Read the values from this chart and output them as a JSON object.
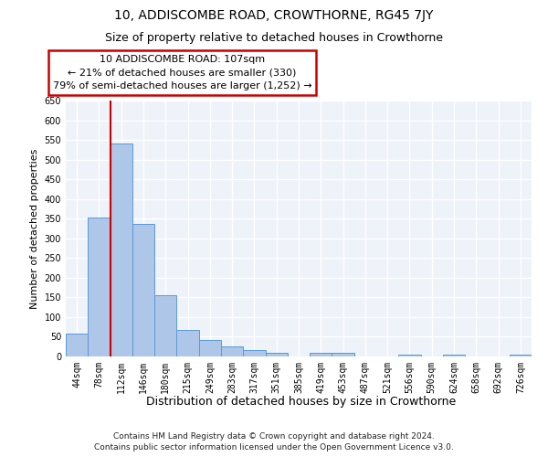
{
  "title1": "10, ADDISCOMBE ROAD, CROWTHORNE, RG45 7JY",
  "title2": "Size of property relative to detached houses in Crowthorne",
  "xlabel": "Distribution of detached houses by size in Crowthorne",
  "ylabel": "Number of detached properties",
  "categories": [
    "44sqm",
    "78sqm",
    "112sqm",
    "146sqm",
    "180sqm",
    "215sqm",
    "249sqm",
    "283sqm",
    "317sqm",
    "351sqm",
    "385sqm",
    "419sqm",
    "453sqm",
    "487sqm",
    "521sqm",
    "556sqm",
    "590sqm",
    "624sqm",
    "658sqm",
    "692sqm",
    "726sqm"
  ],
  "values": [
    57,
    352,
    540,
    336,
    156,
    67,
    42,
    25,
    17,
    10,
    0,
    10,
    10,
    0,
    0,
    5,
    0,
    5,
    0,
    0,
    5
  ],
  "bar_color": "#aec6e8",
  "bar_edge_color": "#5a9bd5",
  "vline_index": 2,
  "annotation_line1": "10 ADDISCOMBE ROAD: 107sqm",
  "annotation_line2": "← 21% of detached houses are smaller (330)",
  "annotation_line3": "79% of semi-detached houses are larger (1,252) →",
  "annotation_box_color": "#ffffff",
  "annotation_box_edge": "#cc0000",
  "vline_color": "#cc0000",
  "footer1": "Contains HM Land Registry data © Crown copyright and database right 2024.",
  "footer2": "Contains public sector information licensed under the Open Government Licence v3.0.",
  "ylim": [
    0,
    650
  ],
  "yticks": [
    0,
    50,
    100,
    150,
    200,
    250,
    300,
    350,
    400,
    450,
    500,
    550,
    600,
    650
  ],
  "bg_color": "#eef2f9",
  "grid_color": "#ffffff",
  "title1_fontsize": 10,
  "title2_fontsize": 9,
  "ylabel_fontsize": 8,
  "xlabel_fontsize": 9,
  "tick_fontsize": 7,
  "annot_fontsize": 8,
  "footer_fontsize": 6.5
}
